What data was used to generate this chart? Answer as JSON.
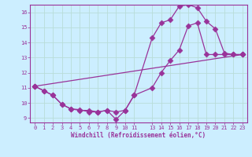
{
  "xlabel": "Windchill (Refroidissement éolien,°C)",
  "background_color": "#cceeff",
  "grid_color": "#aaddcc",
  "line_color": "#993399",
  "xlim": [
    -0.5,
    23.5
  ],
  "ylim": [
    8.7,
    16.5
  ],
  "yticks": [
    9,
    10,
    11,
    12,
    13,
    14,
    15,
    16
  ],
  "xticks": [
    0,
    1,
    2,
    3,
    4,
    5,
    6,
    7,
    8,
    9,
    10,
    11,
    13,
    14,
    15,
    16,
    17,
    18,
    19,
    20,
    21,
    22,
    23
  ],
  "line1_x": [
    0,
    1,
    2,
    3,
    4,
    5,
    6,
    7,
    8,
    9,
    10,
    11,
    13,
    14,
    15,
    16,
    17,
    18,
    19,
    20,
    21,
    22,
    23
  ],
  "line1_y": [
    11.1,
    10.8,
    10.5,
    9.9,
    9.6,
    9.55,
    9.4,
    9.4,
    9.5,
    8.9,
    9.5,
    10.5,
    14.3,
    15.3,
    15.5,
    16.4,
    16.5,
    16.3,
    15.4,
    14.9,
    13.3,
    13.2,
    13.2
  ],
  "line2_x": [
    0,
    1,
    2,
    3,
    4,
    5,
    6,
    7,
    8,
    9,
    10,
    11,
    13,
    14,
    15,
    16,
    17,
    18,
    19,
    20,
    21,
    22,
    23
  ],
  "line2_y": [
    11.1,
    10.8,
    10.5,
    9.9,
    9.6,
    9.5,
    9.5,
    9.4,
    9.5,
    9.4,
    9.5,
    10.5,
    11.0,
    12.0,
    12.8,
    13.5,
    15.1,
    15.3,
    13.2,
    13.2,
    13.2,
    13.2,
    13.2
  ],
  "line3_x": [
    0,
    23
  ],
  "line3_y": [
    11.1,
    13.2
  ]
}
